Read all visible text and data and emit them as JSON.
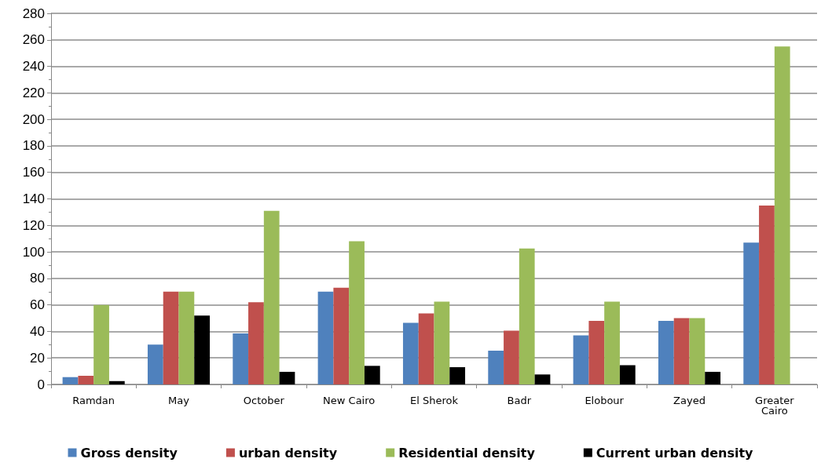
{
  "chart_data": {
    "type": "bar",
    "categories": [
      "Ramdan",
      "May",
      "October",
      "New Cairo",
      "El Sherok",
      "Badr",
      "Elobour",
      "Zayed",
      "Greater\nCairo"
    ],
    "series": [
      {
        "name": "Gross density",
        "color": "#4f81bd",
        "values": [
          5.5,
          30,
          38.5,
          70,
          46.5,
          25.5,
          37,
          48,
          107
        ]
      },
      {
        "name": "urban density",
        "color": "#c0504d",
        "values": [
          6.5,
          70,
          62,
          73,
          53.5,
          40.5,
          48,
          50,
          135
        ]
      },
      {
        "name": "Residential density",
        "color": "#9bbb59",
        "values": [
          60,
          70,
          131,
          108,
          62.5,
          102.5,
          62.5,
          50,
          255
        ]
      },
      {
        "name": "Current urban density",
        "color": "#000000",
        "values": [
          2.5,
          52,
          9.5,
          14,
          13,
          7.5,
          14.5,
          9.5,
          null
        ]
      }
    ],
    "ylim": [
      0,
      280
    ],
    "yticks": [
      0,
      20,
      40,
      60,
      80,
      100,
      120,
      140,
      160,
      180,
      200,
      220,
      240,
      260,
      280
    ],
    "grid": "y",
    "legend": "bottom"
  }
}
